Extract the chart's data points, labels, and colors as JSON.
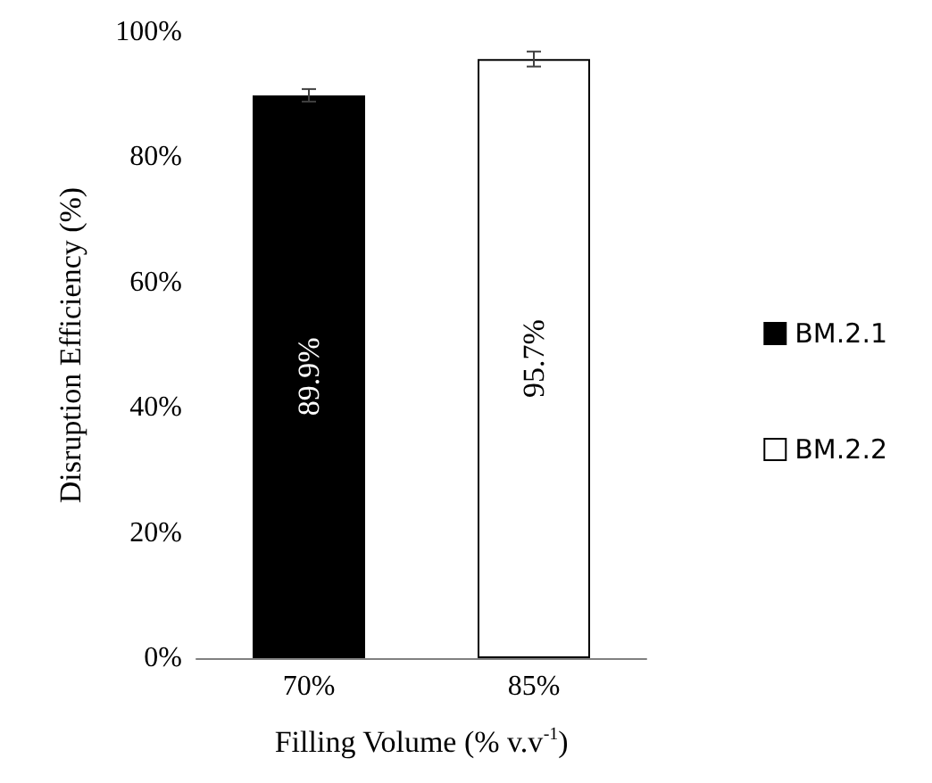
{
  "chart_data": {
    "type": "bar",
    "xlabel": "Filling Volume (% v.v$^{-1}$)",
    "ylabel": "Disruption Efficiency (%)",
    "categories": [
      "70%",
      "85%"
    ],
    "series": [
      {
        "name": "BM.2.1",
        "color": "#000000",
        "values": [
          89.9,
          null
        ],
        "errors": [
          1.0,
          null
        ],
        "value_labels": [
          "89.9%",
          null
        ]
      },
      {
        "name": "BM.2.2",
        "color": "#ffffff",
        "values": [
          null,
          95.7
        ],
        "errors": [
          null,
          1.2
        ],
        "value_labels": [
          null,
          "95.7%"
        ]
      }
    ],
    "ylim": [
      0,
      100
    ],
    "yticks": [
      {
        "value": 0,
        "label": "0%"
      },
      {
        "value": 20,
        "label": "20%"
      },
      {
        "value": 40,
        "label": "40%"
      },
      {
        "value": 60,
        "label": "60%"
      },
      {
        "value": 80,
        "label": "80%"
      },
      {
        "value": 100,
        "label": "100%"
      }
    ],
    "grid": false,
    "legend": "right"
  }
}
